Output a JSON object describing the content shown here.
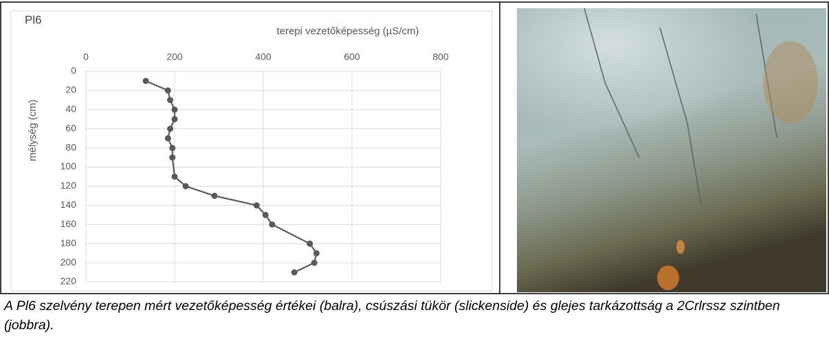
{
  "chart_data": {
    "type": "line",
    "title": "Pl6",
    "x_label": "terepi vezetőképesség (µS/cm)",
    "y_label": "mélység (cm)",
    "x": [
      135,
      185,
      190,
      200,
      200,
      190,
      185,
      195,
      195,
      200,
      225,
      290,
      385,
      405,
      420,
      505,
      520,
      515,
      470
    ],
    "values": [
      10,
      20,
      30,
      40,
      50,
      60,
      70,
      80,
      90,
      110,
      120,
      130,
      140,
      150,
      160,
      180,
      190,
      200,
      210
    ],
    "color": "#595959",
    "xlim": [
      0,
      800
    ],
    "xticks": [
      0,
      200,
      400,
      600,
      800
    ],
    "x_axis_position": "top",
    "ylim": [
      0,
      220
    ],
    "yticks": [
      0,
      20,
      40,
      60,
      80,
      100,
      120,
      140,
      160,
      180,
      200,
      220
    ],
    "y_reversed": true,
    "grid": true
  },
  "caption": "A Pl6 szelvény terepen mért vezetőképesség értékei (balra), csúszási tükör (slickenside) és glejes tarkázottság a 2Crlrssz szintben (jobbra)."
}
